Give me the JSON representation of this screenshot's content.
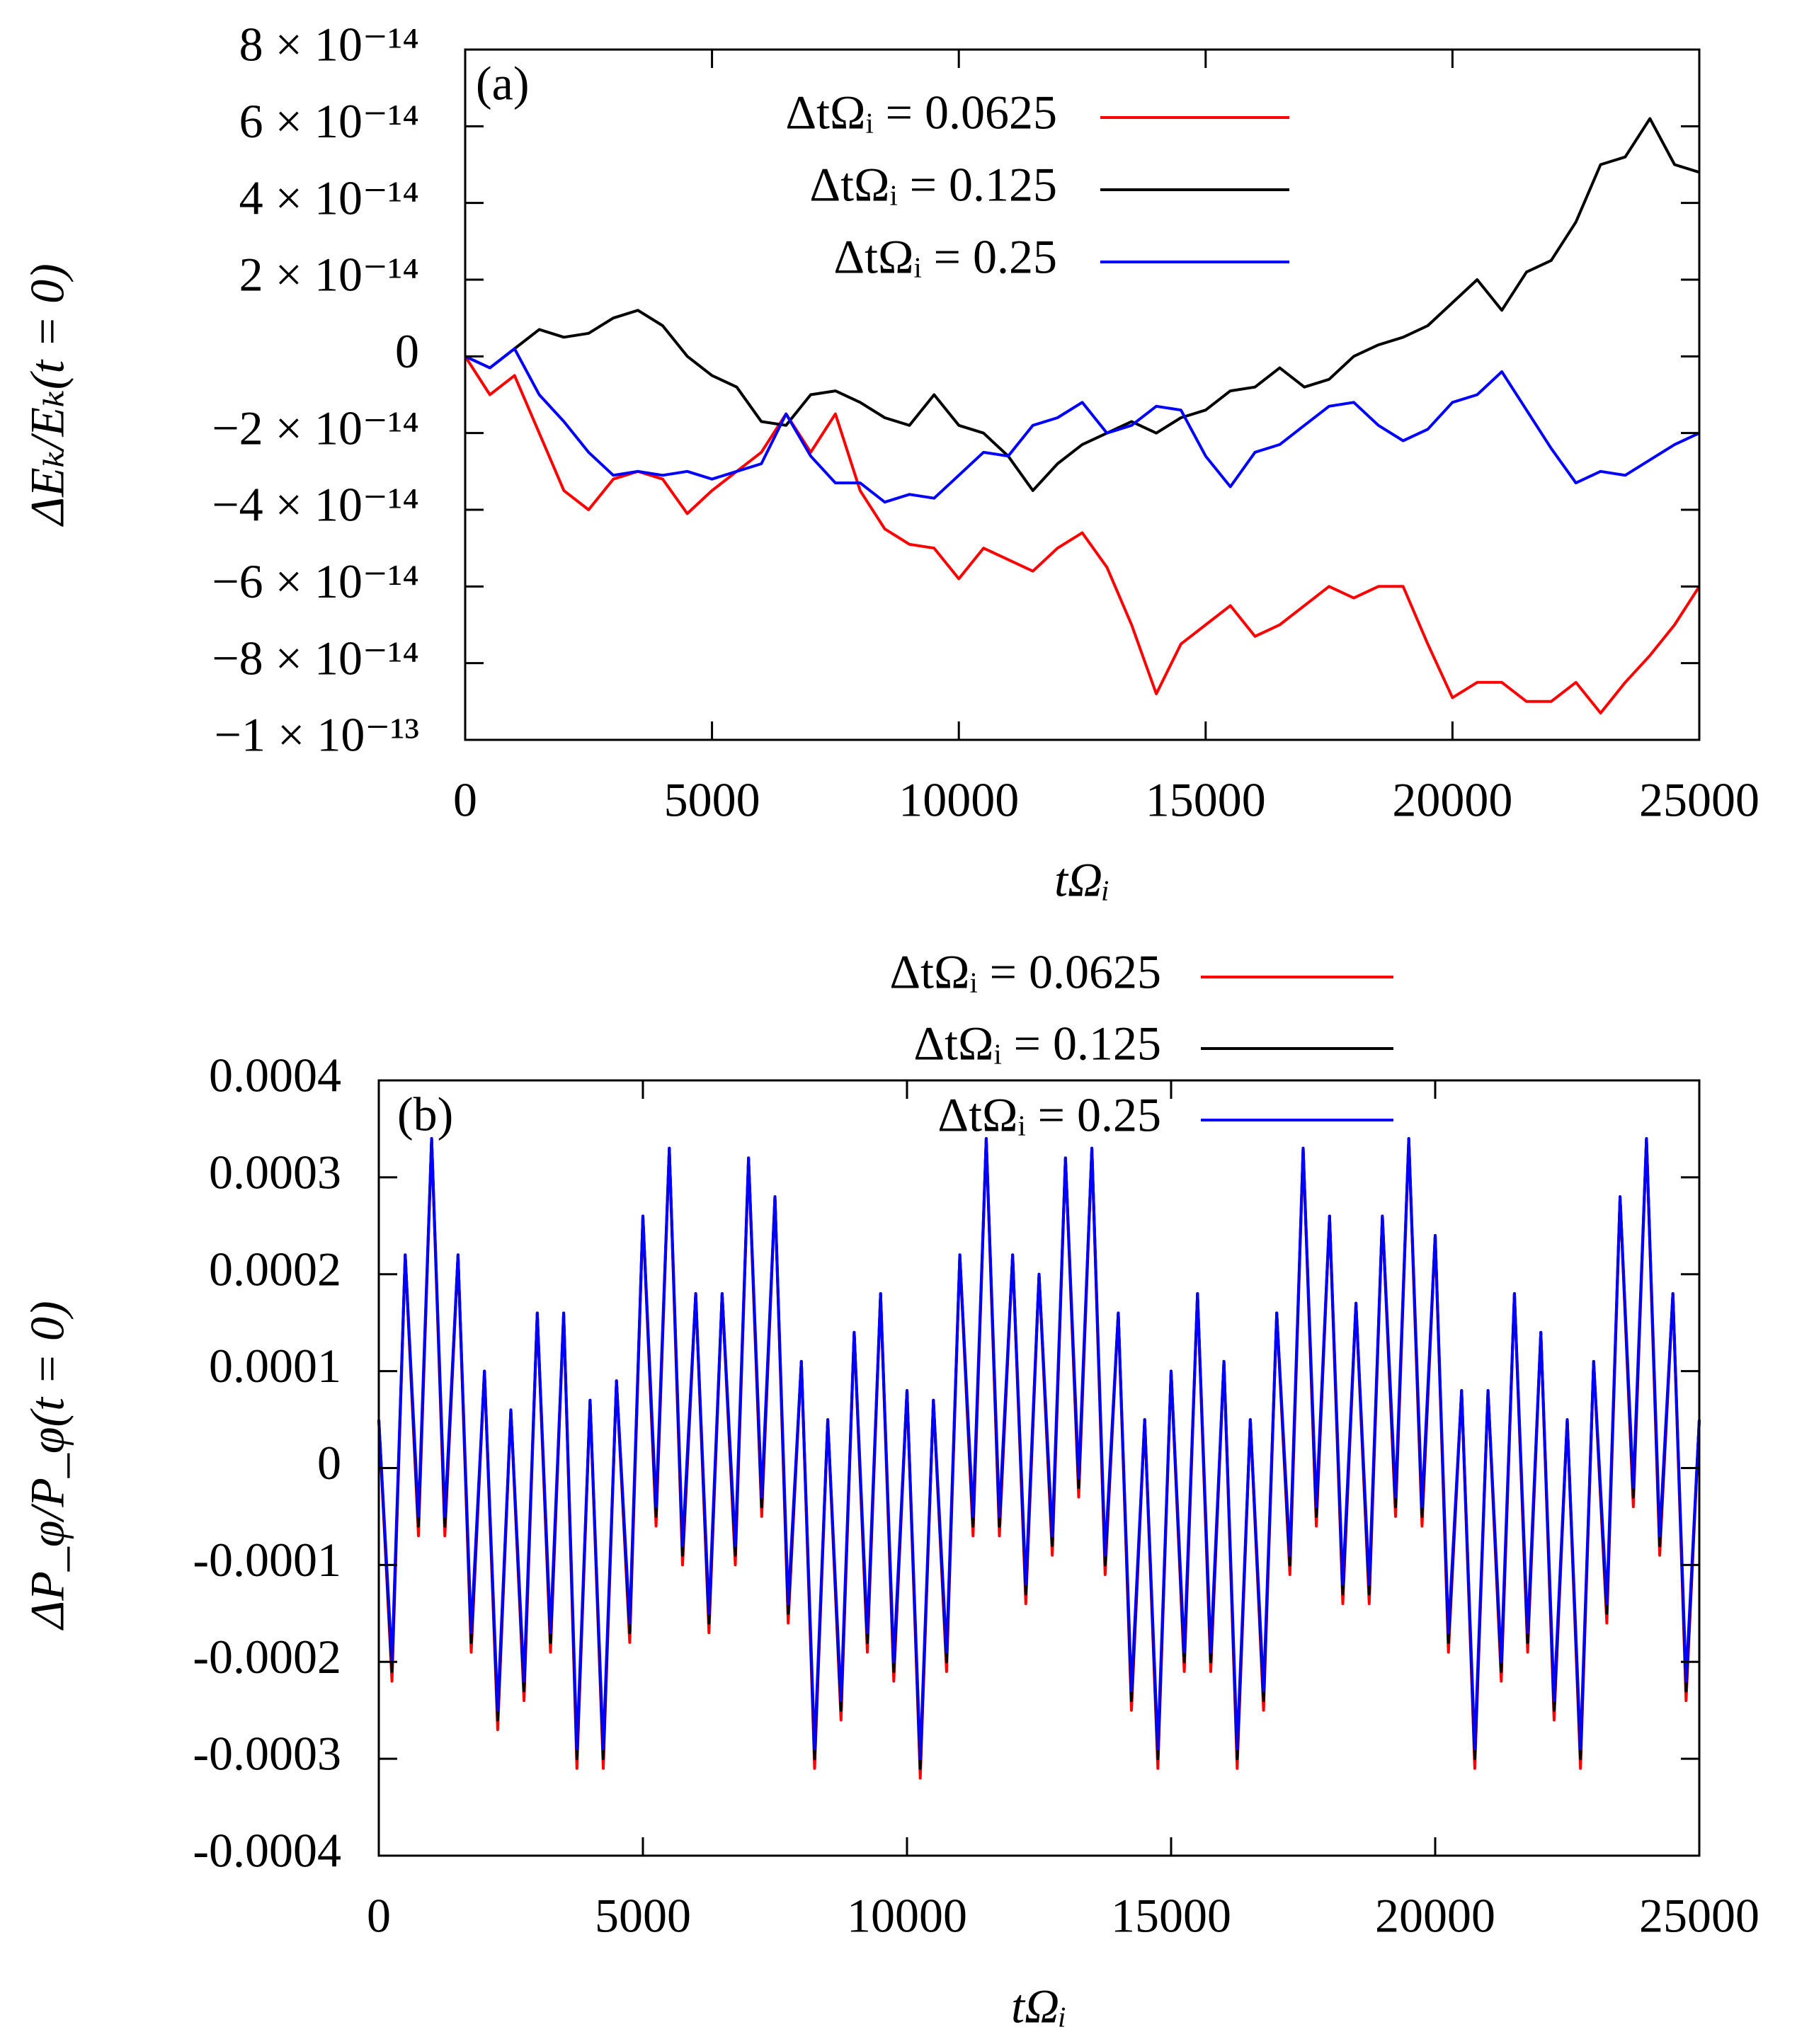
{
  "chart_data": [
    {
      "type": "line",
      "panel_label": "(a)",
      "xlabel": "tΩᵢ",
      "ylabel": "ΔEₖ/Eₖ(t = 0)",
      "xlim": [
        0,
        25000
      ],
      "xticks": [
        0,
        5000,
        10000,
        15000,
        20000,
        25000
      ],
      "ylim": [
        -1e-13,
        8e-14
      ],
      "yticks": [
        {
          "value": -1e-13,
          "label": "−1 × 10⁻¹³"
        },
        {
          "value": -8e-14,
          "label": "−8 × 10⁻¹⁴"
        },
        {
          "value": -6e-14,
          "label": "−6 × 10⁻¹⁴"
        },
        {
          "value": -4e-14,
          "label": "−4 × 10⁻¹⁴"
        },
        {
          "value": -2e-14,
          "label": "−2 × 10⁻¹⁴"
        },
        0,
        {
          "value": 2e-14,
          "label": "2 × 10⁻¹⁴"
        },
        {
          "value": 4e-14,
          "label": "4 × 10⁻¹⁴"
        },
        {
          "value": 6e-14,
          "label": "6 × 10⁻¹⁴"
        },
        {
          "value": 8e-14,
          "label": "8 × 10⁻¹⁴"
        }
      ],
      "x": [
        0,
        500,
        1000,
        1500,
        2000,
        2500,
        3000,
        3500,
        4000,
        4500,
        5000,
        5500,
        6000,
        6500,
        7000,
        7500,
        8000,
        8500,
        9000,
        9500,
        10000,
        10500,
        11000,
        11500,
        12000,
        12500,
        13000,
        13500,
        14000,
        14500,
        15000,
        15500,
        16000,
        16500,
        17000,
        17500,
        18000,
        18500,
        19000,
        19500,
        20000,
        20500,
        21000,
        21500,
        22000,
        22500,
        23000,
        23500,
        24000,
        24500,
        25000
      ],
      "series": [
        {
          "name": "ΔtΩᵢ = 0.0625",
          "color": "#ff0000",
          "values": [
            0,
            -1e-14,
            -5e-15,
            -2e-14,
            -3.5e-14,
            -4e-14,
            -3.2e-14,
            -3e-14,
            -3.2e-14,
            -4.1e-14,
            -3.5e-14,
            -3e-14,
            -2.5e-14,
            -1.5e-14,
            -2.5e-14,
            -1.5e-14,
            -3.5e-14,
            -4.5e-14,
            -4.9e-14,
            -5e-14,
            -5.8e-14,
            -5e-14,
            -5.3e-14,
            -5.6e-14,
            -5e-14,
            -4.6e-14,
            -5.5e-14,
            -7e-14,
            -8.8e-14,
            -7.5e-14,
            -7e-14,
            -6.5e-14,
            -7.3e-14,
            -7e-14,
            -6.5e-14,
            -6e-14,
            -6.3e-14,
            -6e-14,
            -6e-14,
            -7.5e-14,
            -8.9e-14,
            -8.5e-14,
            -8.5e-14,
            -9e-14,
            -9e-14,
            -8.5e-14,
            -9.3e-14,
            -8.5e-14,
            -7.8e-14,
            -7e-14,
            -6e-14
          ]
        },
        {
          "name": "ΔtΩᵢ = 0.125",
          "color": "#000000",
          "values": [
            0,
            -3e-15,
            2e-15,
            7e-15,
            5e-15,
            6e-15,
            1e-14,
            1.2e-14,
            8e-15,
            0,
            -5e-15,
            -8e-15,
            -1.7e-14,
            -1.8e-14,
            -1e-14,
            -9e-15,
            -1.2e-14,
            -1.6e-14,
            -1.8e-14,
            -1e-14,
            -1.8e-14,
            -2e-14,
            -2.6e-14,
            -3.5e-14,
            -2.8e-14,
            -2.3e-14,
            -2e-14,
            -1.7e-14,
            -2e-14,
            -1.6e-14,
            -1.4e-14,
            -9e-15,
            -8e-15,
            -3e-15,
            -8e-15,
            -6e-15,
            0,
            3e-15,
            5e-15,
            8e-15,
            1.4e-14,
            2e-14,
            1.2e-14,
            2.2e-14,
            2.5e-14,
            3.5e-14,
            5e-14,
            5.2e-14,
            6.2e-14,
            5e-14,
            4.8e-14
          ]
        },
        {
          "name": "ΔtΩᵢ = 0.25",
          "color": "#0000ff",
          "values": [
            0,
            -3e-15,
            2e-15,
            -1e-14,
            -1.7e-14,
            -2.5e-14,
            -3.1e-14,
            -3e-14,
            -3.1e-14,
            -3e-14,
            -3.2e-14,
            -3e-14,
            -2.8e-14,
            -1.5e-14,
            -2.6e-14,
            -3.3e-14,
            -3.3e-14,
            -3.8e-14,
            -3.6e-14,
            -3.7e-14,
            -3.1e-14,
            -2.5e-14,
            -2.6e-14,
            -1.8e-14,
            -1.6e-14,
            -1.2e-14,
            -2e-14,
            -1.8e-14,
            -1.3e-14,
            -1.4e-14,
            -2.6e-14,
            -3.4e-14,
            -2.5e-14,
            -2.3e-14,
            -1.8e-14,
            -1.3e-14,
            -1.2e-14,
            -1.8e-14,
            -2.2e-14,
            -1.9e-14,
            -1.2e-14,
            -1e-14,
            -4e-15,
            -1.4e-14,
            -2.4e-14,
            -3.3e-14,
            -3e-14,
            -3.1e-14,
            -2.7e-14,
            -2.3e-14,
            -2e-14
          ]
        }
      ]
    },
    {
      "type": "line",
      "panel_label": "(b)",
      "xlabel": "tΩᵢ",
      "ylabel": "ΔP_φ/P_φ(t = 0)",
      "xlim": [
        0,
        25000
      ],
      "xticks": [
        0,
        5000,
        10000,
        15000,
        20000,
        25000
      ],
      "ylim": [
        -0.0004,
        0.0004
      ],
      "yticks": [
        -0.0004,
        -0.0003,
        -0.0002,
        -0.0001,
        0,
        0.0001,
        0.0002,
        0.0003,
        0.0004
      ],
      "x": [
        0,
        250,
        500,
        750,
        1000,
        1250,
        1500,
        1750,
        2000,
        2250,
        2500,
        2750,
        3000,
        3250,
        3500,
        3750,
        4000,
        4250,
        4500,
        4750,
        5000,
        5250,
        5500,
        5750,
        6000,
        6250,
        6500,
        6750,
        7000,
        7250,
        7500,
        7750,
        8000,
        8250,
        8500,
        8750,
        9000,
        9250,
        9500,
        9750,
        10000,
        10250,
        10500,
        10750,
        11000,
        11250,
        11500,
        11750,
        12000,
        12250,
        12500,
        12750,
        13000,
        13250,
        13500,
        13750,
        14000,
        14250,
        14500,
        14750,
        15000,
        15250,
        15500,
        15750,
        16000,
        16250,
        16500,
        16750,
        17000,
        17250,
        17500,
        17750,
        18000,
        18250,
        18500,
        18750,
        19000,
        19250,
        19500,
        19750,
        20000,
        20250,
        20500,
        20750,
        21000,
        21250,
        21500,
        21750,
        22000,
        22250,
        22500,
        22750,
        23000,
        23250,
        23500,
        23750,
        24000,
        24250,
        24500,
        24750,
        25000
      ],
      "series": [
        {
          "name": "ΔtΩᵢ = 0.0625",
          "color": "#ff0000",
          "values": [
            5e-05,
            -0.00022,
            0.00022,
            -7e-05,
            0.00034,
            -7e-05,
            0.00022,
            -0.00019,
            0.0001,
            -0.00027,
            6e-05,
            -0.00024,
            0.00016,
            -0.00019,
            0.00016,
            -0.00031,
            7e-05,
            -0.00031,
            9e-05,
            -0.00018,
            0.00026,
            -6e-05,
            0.00033,
            -0.0001,
            0.00018,
            -0.00017,
            0.00018,
            -0.0001,
            0.00032,
            -5e-05,
            0.00028,
            -0.00016,
            0.00011,
            -0.00031,
            5e-05,
            -0.00026,
            0.00014,
            -0.00019,
            0.00018,
            -0.00022,
            8e-05,
            -0.00032,
            7e-05,
            -0.00021,
            0.00022,
            -7e-05,
            0.00034,
            -7e-05,
            0.00022,
            -0.00014,
            0.0002,
            -9e-05,
            0.00032,
            -3e-05,
            0.00033,
            -0.00011,
            0.00016,
            -0.00025,
            5e-05,
            -0.00031,
            0.0001,
            -0.00021,
            0.00018,
            -0.00021,
            0.00011,
            -0.00031,
            5e-05,
            -0.00025,
            0.00016,
            -0.00011,
            0.00033,
            -6e-05,
            0.00026,
            -0.00014,
            0.00017,
            -0.00014,
            0.00026,
            -5e-05,
            0.00034,
            -6e-05,
            0.00024,
            -0.00019,
            8e-05,
            -0.00031,
            8e-05,
            -0.00022,
            0.00018,
            -0.00019,
            0.00014,
            -0.00026,
            5e-05,
            -0.00031,
            0.00011,
            -0.00016,
            0.00028,
            -4e-05,
            0.00034,
            -9e-05,
            0.00018,
            -0.00024,
            5e-05
          ]
        },
        {
          "name": "ΔtΩᵢ = 0.125",
          "color": "#000000",
          "values": [
            5e-05,
            -0.00021,
            0.00022,
            -6e-05,
            0.00034,
            -6e-05,
            0.00022,
            -0.00018,
            0.0001,
            -0.00026,
            6e-05,
            -0.00023,
            0.00016,
            -0.00018,
            0.00016,
            -0.0003,
            7e-05,
            -0.0003,
            9e-05,
            -0.00017,
            0.00026,
            -5e-05,
            0.00033,
            -9e-05,
            0.00018,
            -0.00016,
            0.00018,
            -9e-05,
            0.00032,
            -4e-05,
            0.00028,
            -0.00015,
            0.00011,
            -0.0003,
            5e-05,
            -0.00025,
            0.00014,
            -0.00018,
            0.00018,
            -0.00021,
            8e-05,
            -0.00031,
            7e-05,
            -0.0002,
            0.00022,
            -6e-05,
            0.00034,
            -6e-05,
            0.00022,
            -0.00013,
            0.0002,
            -8e-05,
            0.00032,
            -2e-05,
            0.00033,
            -0.0001,
            0.00016,
            -0.00024,
            5e-05,
            -0.0003,
            0.0001,
            -0.0002,
            0.00018,
            -0.0002,
            0.00011,
            -0.0003,
            5e-05,
            -0.00024,
            0.00016,
            -0.0001,
            0.00033,
            -5e-05,
            0.00026,
            -0.00013,
            0.00017,
            -0.00013,
            0.00026,
            -4e-05,
            0.00034,
            -5e-05,
            0.00024,
            -0.00018,
            8e-05,
            -0.0003,
            8e-05,
            -0.00021,
            0.00018,
            -0.00018,
            0.00014,
            -0.00025,
            5e-05,
            -0.0003,
            0.00011,
            -0.00015,
            0.00028,
            -3e-05,
            0.00034,
            -8e-05,
            0.00018,
            -0.00023,
            5e-05
          ]
        },
        {
          "name": "ΔtΩᵢ = 0.25",
          "color": "#0000ff",
          "values": [
            5e-05,
            -0.0002,
            0.00022,
            -5e-05,
            0.00034,
            -5e-05,
            0.00022,
            -0.00017,
            0.0001,
            -0.00025,
            6e-05,
            -0.00022,
            0.00016,
            -0.00017,
            0.00016,
            -0.00029,
            7e-05,
            -0.00029,
            9e-05,
            -0.00016,
            0.00026,
            -4e-05,
            0.00033,
            -8e-05,
            0.00018,
            -0.00015,
            0.00018,
            -8e-05,
            0.00032,
            -3e-05,
            0.00028,
            -0.00014,
            0.00011,
            -0.00029,
            5e-05,
            -0.00024,
            0.00014,
            -0.00017,
            0.00018,
            -0.0002,
            8e-05,
            -0.0003,
            7e-05,
            -0.00019,
            0.00022,
            -5e-05,
            0.00034,
            -5e-05,
            0.00022,
            -0.00012,
            0.0002,
            -7e-05,
            0.00032,
            -1e-05,
            0.00033,
            -9e-05,
            0.00016,
            -0.00023,
            5e-05,
            -0.00029,
            0.0001,
            -0.00019,
            0.00018,
            -0.00019,
            0.00011,
            -0.00029,
            5e-05,
            -0.00023,
            0.00016,
            -9e-05,
            0.00033,
            -4e-05,
            0.00026,
            -0.00012,
            0.00017,
            -0.00012,
            0.00026,
            -3e-05,
            0.00034,
            -4e-05,
            0.00024,
            -0.00017,
            8e-05,
            -0.00029,
            8e-05,
            -0.0002,
            0.00018,
            -0.00017,
            0.00014,
            -0.00024,
            5e-05,
            -0.00029,
            0.00011,
            -0.00014,
            0.00028,
            -2e-05,
            0.00034,
            -7e-05,
            0.00018,
            -0.00022,
            5e-05
          ]
        }
      ]
    }
  ]
}
